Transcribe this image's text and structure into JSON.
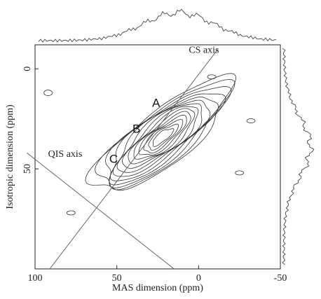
{
  "chart_data": {
    "type": "contour",
    "xlabel": "MAS  dimension (ppm)",
    "ylabel": "Isotropic  dimension (ppm)",
    "xlim": [
      100,
      -50
    ],
    "ylim": [
      -12,
      100
    ],
    "x_ticks": [
      "100",
      "50",
      "0",
      "-50"
    ],
    "x_tick_values": [
      100,
      50,
      0,
      -50
    ],
    "y_ticks": [
      "0",
      "50"
    ],
    "y_tick_values": [
      0,
      50
    ],
    "lines": [
      {
        "name": "CS axis",
        "from": [
          91,
          100
        ],
        "to": [
          -12,
          -10
        ]
      },
      {
        "name": "QIS axis",
        "from": [
          105,
          42
        ],
        "to": [
          15,
          100
        ]
      }
    ],
    "points": [
      {
        "label": "A",
        "x": 26,
        "y": 19
      },
      {
        "label": "B",
        "x": 38,
        "y": 32
      },
      {
        "label": "C",
        "x": 52,
        "y": 47
      }
    ],
    "text_labels": [
      {
        "text": "CS axis",
        "x": 6,
        "y": -8
      },
      {
        "text": "QIS axis",
        "x": 92,
        "y": 44
      }
    ],
    "contour_peak": {
      "x": 22,
      "y": 34
    },
    "contour_levels": 14,
    "line_color": "#333333"
  }
}
